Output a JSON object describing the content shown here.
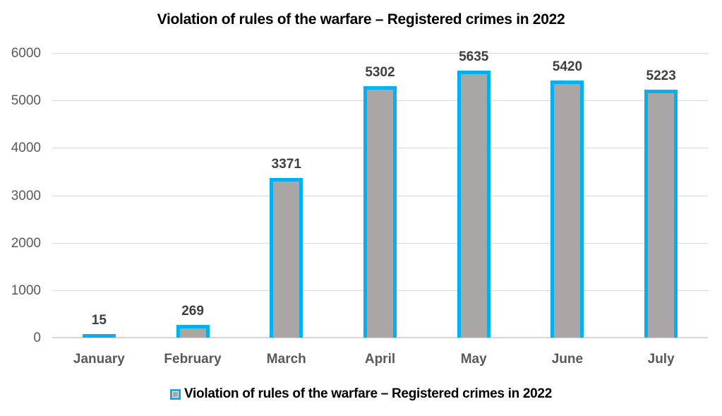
{
  "title": "Violation of rules of the warfare – Registered crimes in 2022",
  "legend": {
    "label": "Violation of rules of the warfare – Registered crimes in 2022"
  },
  "colors": {
    "bar_fill": "#AAA6A6",
    "bar_border": "#00B0F0",
    "gridline": "#D9D9D9",
    "tick_label": "#595959",
    "data_label": "#3F3F3F",
    "title_text": "#000000",
    "background": "#FFFFFF"
  },
  "chart_data": {
    "type": "bar",
    "title": "Violation of rules of the warfare – Registered crimes in 2022",
    "categories": [
      "January",
      "February",
      "March",
      "April",
      "May",
      "June",
      "July"
    ],
    "values": [
      15,
      269,
      3371,
      5302,
      5635,
      5420,
      5223
    ],
    "series_name": "Violation of rules of the warfare – Registered crimes in 2022",
    "xlabel": "",
    "ylabel": "",
    "ylim": [
      0,
      6000
    ],
    "yticks": [
      0,
      1000,
      2000,
      3000,
      4000,
      5000,
      6000
    ],
    "grid": true,
    "data_labels": true,
    "legend_position": "bottom"
  }
}
